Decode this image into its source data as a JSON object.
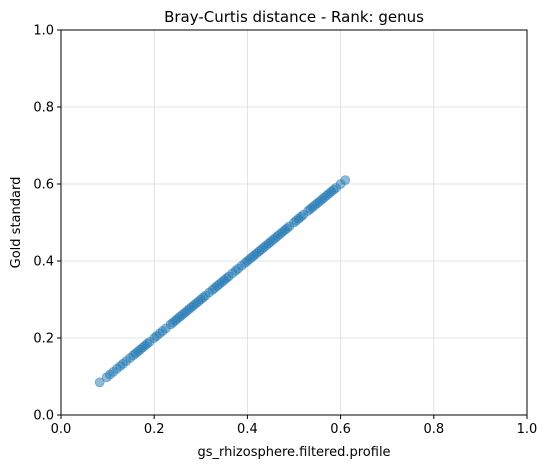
{
  "chart_data": {
    "type": "scatter",
    "title": "Bray-Curtis distance - Rank: genus",
    "xlabel": "gs_rhizosphere.filtered.profile",
    "ylabel": "Gold standard",
    "xlim": [
      0.0,
      1.0
    ],
    "ylim": [
      0.0,
      1.0
    ],
    "xticks": [
      "0.0",
      "0.2",
      "0.4",
      "0.6",
      "0.8",
      "1.0"
    ],
    "yticks": [
      "0.0",
      "0.2",
      "0.4",
      "0.6",
      "0.8",
      "1.0"
    ],
    "grid": true,
    "marker_color": "#1f77b4",
    "marker_alpha": 0.5,
    "points": [
      [
        0.083,
        0.085
      ],
      [
        0.098,
        0.098
      ],
      [
        0.105,
        0.105
      ],
      [
        0.112,
        0.112
      ],
      [
        0.12,
        0.12
      ],
      [
        0.127,
        0.127
      ],
      [
        0.133,
        0.133
      ],
      [
        0.14,
        0.14
      ],
      [
        0.148,
        0.148
      ],
      [
        0.155,
        0.155
      ],
      [
        0.16,
        0.16
      ],
      [
        0.165,
        0.165
      ],
      [
        0.17,
        0.17
      ],
      [
        0.175,
        0.175
      ],
      [
        0.18,
        0.18
      ],
      [
        0.185,
        0.185
      ],
      [
        0.19,
        0.19
      ],
      [
        0.2,
        0.2
      ],
      [
        0.205,
        0.205
      ],
      [
        0.212,
        0.212
      ],
      [
        0.218,
        0.218
      ],
      [
        0.225,
        0.225
      ],
      [
        0.235,
        0.235
      ],
      [
        0.24,
        0.24
      ],
      [
        0.245,
        0.245
      ],
      [
        0.25,
        0.25
      ],
      [
        0.255,
        0.255
      ],
      [
        0.26,
        0.26
      ],
      [
        0.265,
        0.265
      ],
      [
        0.27,
        0.27
      ],
      [
        0.275,
        0.275
      ],
      [
        0.28,
        0.28
      ],
      [
        0.285,
        0.285
      ],
      [
        0.29,
        0.29
      ],
      [
        0.295,
        0.295
      ],
      [
        0.3,
        0.3
      ],
      [
        0.305,
        0.305
      ],
      [
        0.31,
        0.31
      ],
      [
        0.318,
        0.318
      ],
      [
        0.325,
        0.325
      ],
      [
        0.33,
        0.33
      ],
      [
        0.335,
        0.335
      ],
      [
        0.34,
        0.34
      ],
      [
        0.345,
        0.345
      ],
      [
        0.35,
        0.35
      ],
      [
        0.355,
        0.355
      ],
      [
        0.36,
        0.36
      ],
      [
        0.368,
        0.368
      ],
      [
        0.375,
        0.375
      ],
      [
        0.38,
        0.38
      ],
      [
        0.388,
        0.388
      ],
      [
        0.395,
        0.395
      ],
      [
        0.4,
        0.4
      ],
      [
        0.405,
        0.405
      ],
      [
        0.41,
        0.41
      ],
      [
        0.415,
        0.415
      ],
      [
        0.42,
        0.42
      ],
      [
        0.425,
        0.425
      ],
      [
        0.43,
        0.43
      ],
      [
        0.435,
        0.435
      ],
      [
        0.44,
        0.44
      ],
      [
        0.445,
        0.445
      ],
      [
        0.45,
        0.45
      ],
      [
        0.455,
        0.455
      ],
      [
        0.46,
        0.46
      ],
      [
        0.465,
        0.465
      ],
      [
        0.47,
        0.47
      ],
      [
        0.475,
        0.475
      ],
      [
        0.48,
        0.48
      ],
      [
        0.485,
        0.485
      ],
      [
        0.49,
        0.49
      ],
      [
        0.5,
        0.5
      ],
      [
        0.505,
        0.505
      ],
      [
        0.51,
        0.51
      ],
      [
        0.515,
        0.515
      ],
      [
        0.52,
        0.52
      ],
      [
        0.53,
        0.53
      ],
      [
        0.535,
        0.535
      ],
      [
        0.54,
        0.54
      ],
      [
        0.545,
        0.545
      ],
      [
        0.55,
        0.55
      ],
      [
        0.555,
        0.555
      ],
      [
        0.56,
        0.56
      ],
      [
        0.565,
        0.565
      ],
      [
        0.57,
        0.57
      ],
      [
        0.575,
        0.575
      ],
      [
        0.58,
        0.58
      ],
      [
        0.585,
        0.585
      ],
      [
        0.59,
        0.59
      ],
      [
        0.6,
        0.6
      ],
      [
        0.61,
        0.61
      ]
    ]
  }
}
